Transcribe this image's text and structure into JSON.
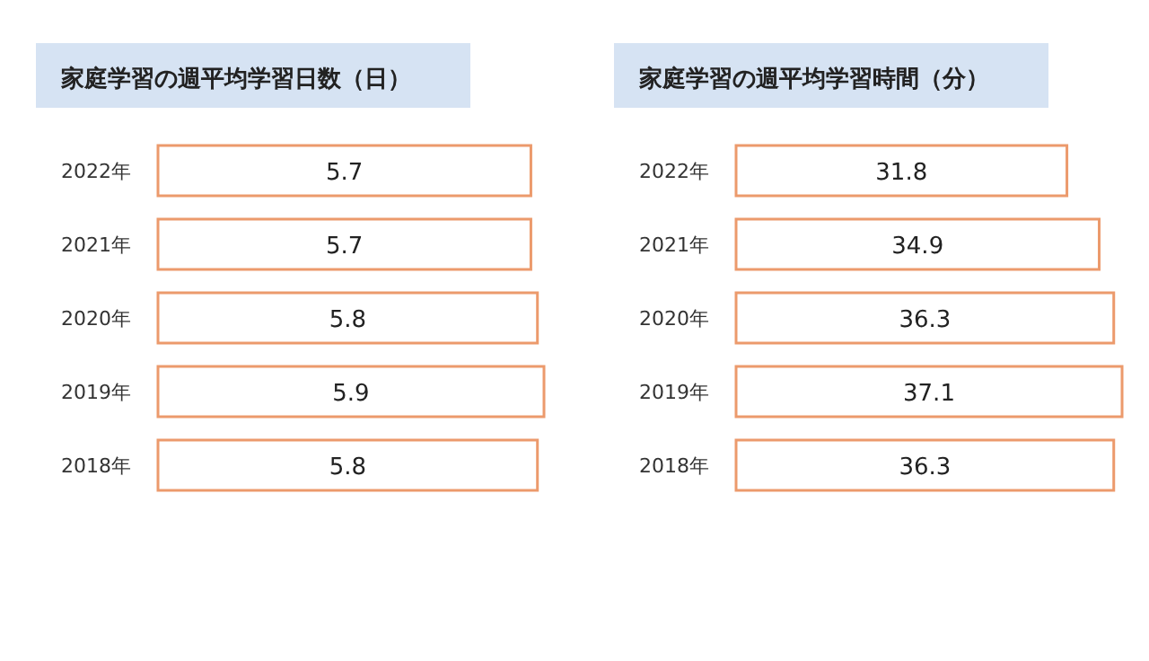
{
  "chart_data": [
    {
      "type": "bar",
      "orientation": "horizontal",
      "title": "家庭学習の週平均学習日数（日）",
      "categories": [
        "2022年",
        "2021年",
        "2020年",
        "2019年",
        "2018年"
      ],
      "values": [
        5.7,
        5.7,
        5.8,
        5.9,
        5.8
      ],
      "color": "#ec9a6c",
      "data_labels": true
    },
    {
      "type": "bar",
      "orientation": "horizontal",
      "title": "家庭学習の週平均学習時間（分）",
      "categories": [
        "2022年",
        "2021年",
        "2020年",
        "2019年",
        "2018年"
      ],
      "values": [
        31.8,
        34.9,
        36.3,
        37.1,
        36.3
      ],
      "color": "#ec9a6c",
      "data_labels": true
    }
  ]
}
